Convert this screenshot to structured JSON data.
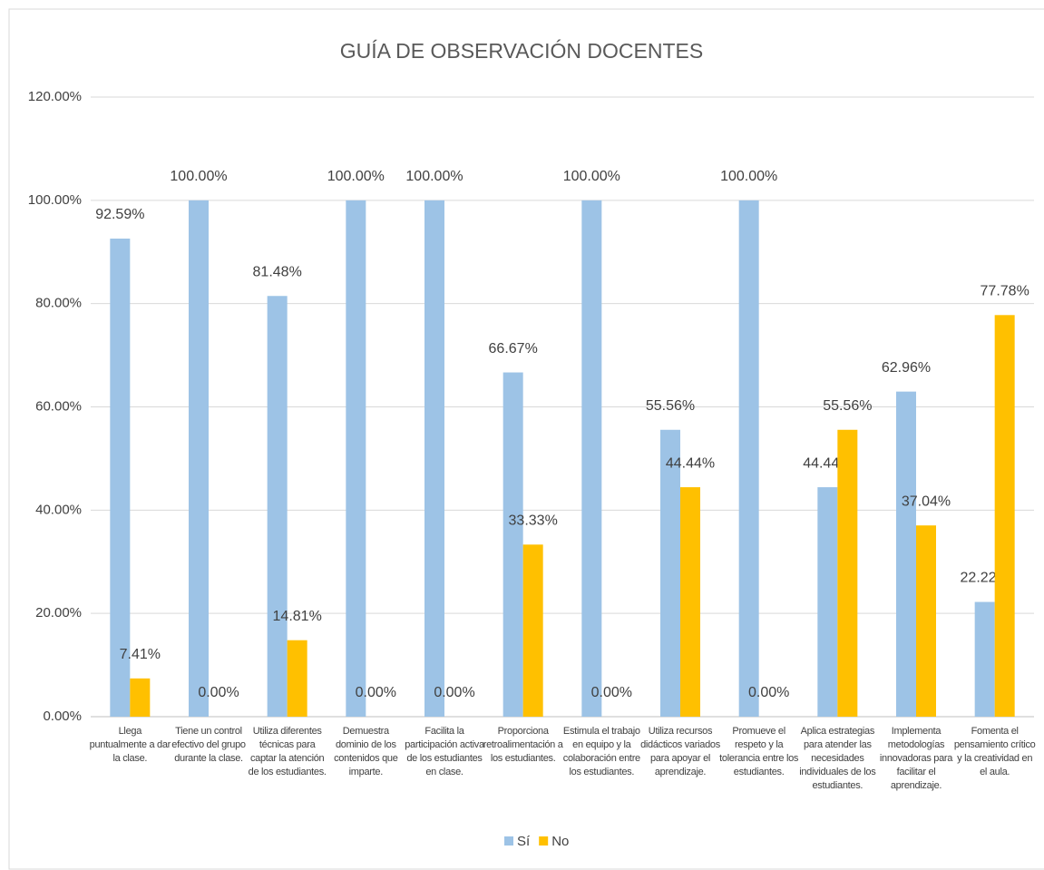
{
  "chart_data": {
    "type": "bar",
    "title": "GUÍA DE OBSERVACIÓN DOCENTES",
    "categories": [
      "Llega puntualmente a dar la clase.",
      "Tiene un control efectivo del grupo durante la clase.",
      "Utiliza diferentes técnicas para captar la atención de los estudiantes.",
      "Demuestra dominio de los contenidos que imparte.",
      "Facilita la participación activa de los estudiantes en clase.",
      "Proporciona retroalimentación a los estudiantes.",
      "Estimula el trabajo en equipo y la colaboración entre los estudiantes.",
      "Utiliza recursos didácticos variados para apoyar el aprendizaje.",
      "Promueve el respeto y la tolerancia entre los estudiantes.",
      "Aplica estrategias para atender las necesidades individuales de los estudiantes.",
      "Implementa metodologías innovadoras para facilitar el aprendizaje.",
      "Fomenta el pensamiento crítico y la creatividad en el aula."
    ],
    "series": [
      {
        "name": "Sí",
        "color": "#9dc3e6",
        "values": [
          92.59,
          100,
          81.48,
          100,
          100,
          66.67,
          100,
          55.56,
          100,
          44.44,
          62.96,
          22.22
        ],
        "value_labels": [
          "92.59%",
          "100.00%",
          "81.48%",
          "100.00%",
          "100.00%",
          "66.67%",
          "100.00%",
          "55.56%",
          "100.00%",
          "44.44%",
          "62.96%",
          "22.22%"
        ]
      },
      {
        "name": "No",
        "color": "#ffc000",
        "values": [
          7.41,
          0,
          14.81,
          0,
          0,
          33.33,
          0,
          44.44,
          0,
          55.56,
          37.04,
          77.78
        ],
        "value_labels": [
          "7.41%",
          "0.00%",
          "14.81%",
          "0.00%",
          "0.00%",
          "33.33%",
          "0.00%",
          "44.44%",
          "0.00%",
          "55.56%",
          "37.04%",
          "77.78%"
        ]
      }
    ],
    "ylim": [
      0,
      120
    ],
    "yticks": [
      {
        "value": 0,
        "label": "0.00%"
      },
      {
        "value": 20,
        "label": "20.00%"
      },
      {
        "value": 40,
        "label": "40.00%"
      },
      {
        "value": 60,
        "label": "60.00%"
      },
      {
        "value": 80,
        "label": "80.00%"
      },
      {
        "value": 100,
        "label": "100.00%"
      },
      {
        "value": 120,
        "label": "120.00%"
      }
    ],
    "grid": true,
    "legend": "bottom"
  }
}
